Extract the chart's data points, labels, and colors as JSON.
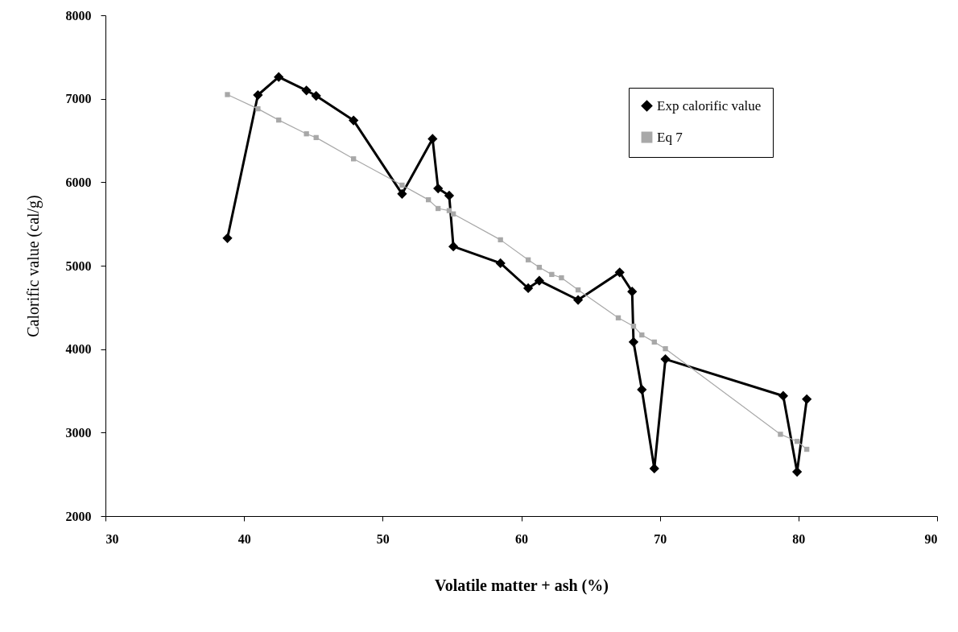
{
  "chart_data": {
    "type": "line",
    "xlabel": "Volatile matter + ash (%)",
    "ylabel": "Calorific value (cal/g)",
    "xlim": [
      30,
      90
    ],
    "xticks": [
      30,
      40,
      50,
      60,
      70,
      80,
      90
    ],
    "ylim": [
      2000,
      8000
    ],
    "yticks": [
      2000,
      3000,
      4000,
      5000,
      6000,
      7000,
      8000
    ],
    "legend": "top right",
    "series": [
      {
        "name": "Exp calorific value",
        "color": "#000000",
        "marker": "diamond",
        "x": [
          38.8,
          41.0,
          42.5,
          44.5,
          45.2,
          47.9,
          51.4,
          53.6,
          54.0,
          54.8,
          55.1,
          58.5,
          60.5,
          61.3,
          64.1,
          67.1,
          68.0,
          68.1,
          68.7,
          69.6,
          70.4,
          78.9,
          79.9,
          80.6
        ],
        "values": [
          5330,
          7045,
          7260,
          7100,
          7035,
          6740,
          5860,
          6520,
          5925,
          5840,
          5230,
          5030,
          4730,
          4820,
          4590,
          4920,
          4690,
          4085,
          3515,
          2570,
          3880,
          3440,
          2530,
          3400
        ]
      },
      {
        "name": "Eq 7",
        "color": "#a8a8a8",
        "marker": "square",
        "x": [
          38.8,
          41.0,
          42.5,
          44.5,
          45.2,
          47.9,
          51.4,
          53.3,
          54.0,
          54.8,
          55.1,
          58.5,
          60.5,
          61.3,
          62.2,
          62.9,
          64.1,
          67.0,
          68.1,
          68.7,
          69.6,
          70.4,
          78.7,
          79.9,
          80.6
        ],
        "values": [
          7050,
          6880,
          6745,
          6580,
          6535,
          6280,
          5965,
          5790,
          5685,
          5660,
          5620,
          5310,
          5070,
          4980,
          4895,
          4855,
          4710,
          4375,
          4275,
          4170,
          4085,
          4005,
          2980,
          2895,
          2800
        ]
      }
    ]
  }
}
